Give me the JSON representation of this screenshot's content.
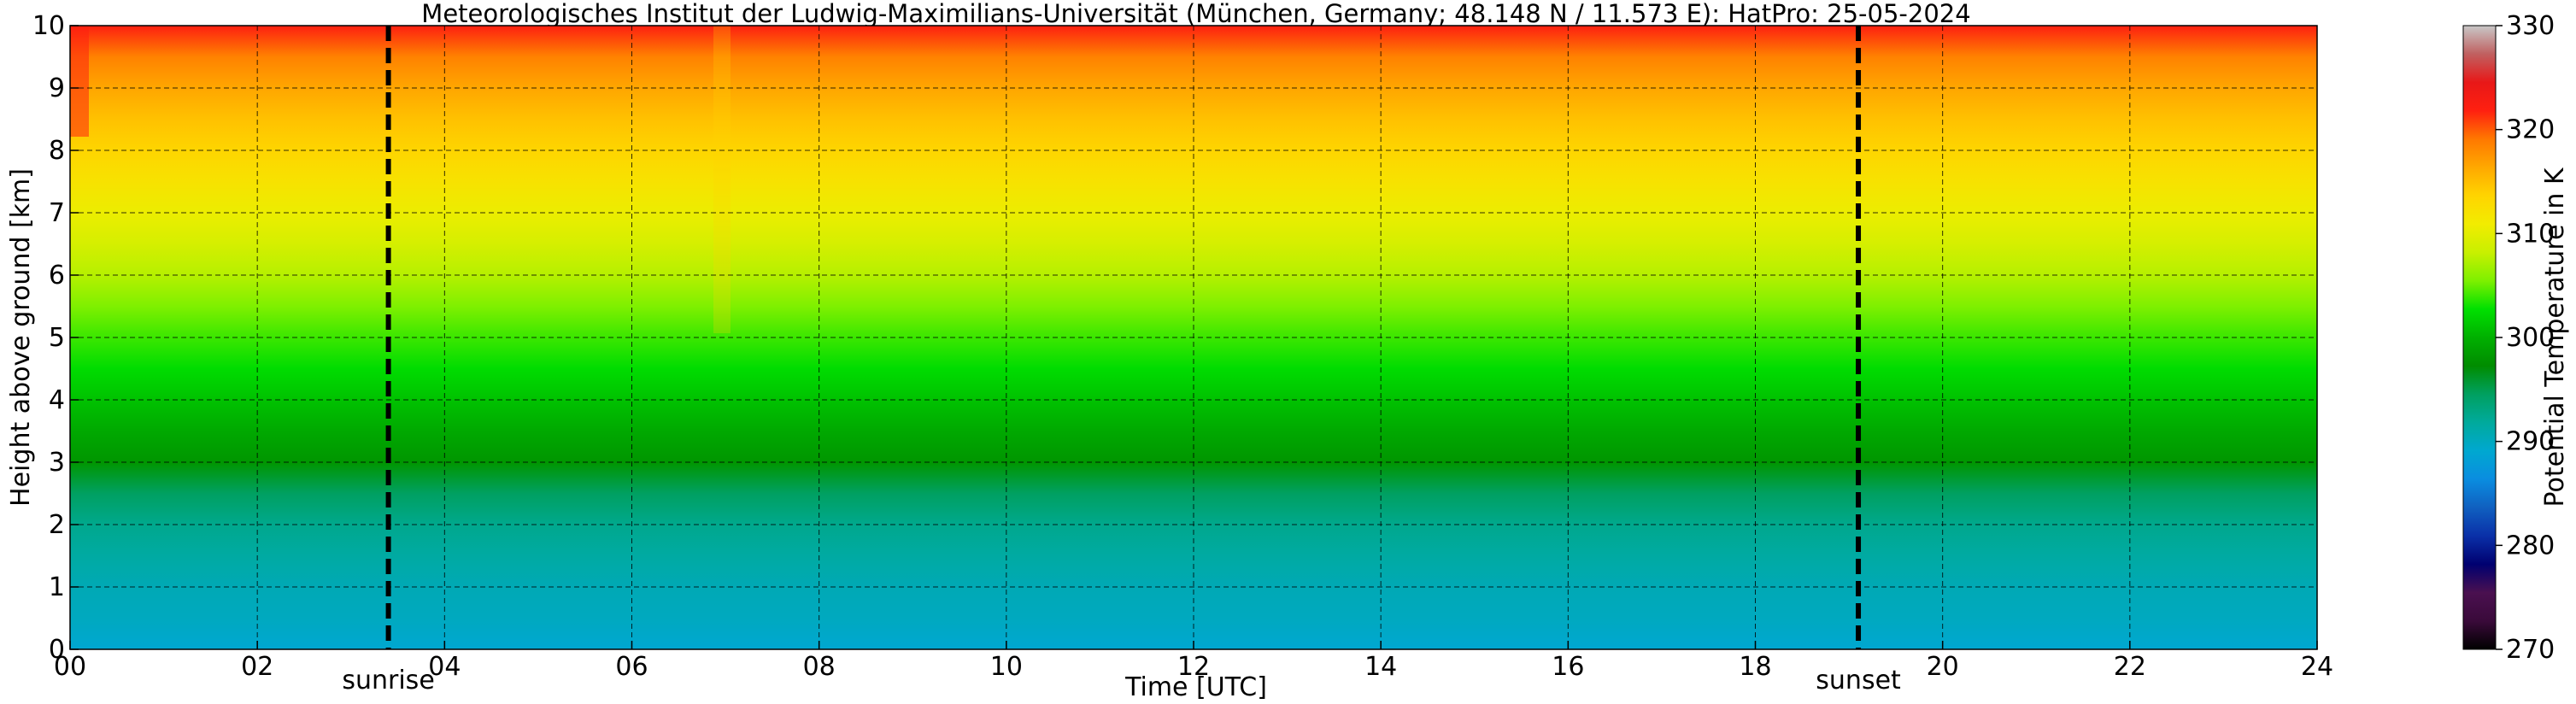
{
  "chart_data": {
    "type": "heatmap",
    "title": "Meteorologisches Institut der Ludwig-Maximilians-Universität (München, Germany; 48.148 N / 11.573 E):    HatPro: 25-05-2024",
    "xlabel": "Time [UTC]",
    "ylabel": "Height above ground [km]",
    "xlim": [
      0,
      24
    ],
    "ylim": [
      0,
      10
    ],
    "x_ticks": [
      "00",
      "02",
      "04",
      "06",
      "08",
      "10",
      "12",
      "14",
      "16",
      "18",
      "20",
      "22",
      "24"
    ],
    "y_ticks": [
      "0",
      "1",
      "2",
      "3",
      "4",
      "5",
      "6",
      "7",
      "8",
      "9",
      "10"
    ],
    "grid": true,
    "colorbar": {
      "label": "Potential Temperature in K",
      "range": [
        270,
        330
      ],
      "ticks": [
        "270",
        "280",
        "290",
        "300",
        "310",
        "320",
        "330"
      ]
    },
    "z_profile": {
      "height_km": [
        0,
        0.5,
        1,
        1.5,
        2,
        2.5,
        3,
        3.5,
        4,
        4.5,
        5,
        5.5,
        6,
        6.5,
        7,
        7.5,
        8,
        8.5,
        9,
        9.5,
        10
      ],
      "potential_temperature_K": [
        289,
        290,
        290.5,
        291.5,
        292.5,
        294.5,
        298,
        299.5,
        301,
        302.5,
        304,
        305.5,
        307.5,
        309,
        310.5,
        312,
        313.5,
        314.8,
        316.5,
        318.5,
        322
      ]
    },
    "markers": [
      {
        "label": "sunrise",
        "time_utc": 3.4
      },
      {
        "label": "sunset",
        "time_utc": 19.1
      }
    ],
    "colors": {
      "scale": [
        "#000000",
        "#3a0a3a",
        "#4a1050",
        "#000070",
        "#0a30a8",
        "#1060c0",
        "#0a8de0",
        "#00a8d0",
        "#00aa9c",
        "#00a060",
        "#008c00",
        "#00b000",
        "#00e000",
        "#7ef000",
        "#c8f000",
        "#f2ec00",
        "#ffd400",
        "#ffa800",
        "#ff7800",
        "#ff2010",
        "#e81818",
        "#c06060",
        "#c8c8c8"
      ]
    }
  }
}
